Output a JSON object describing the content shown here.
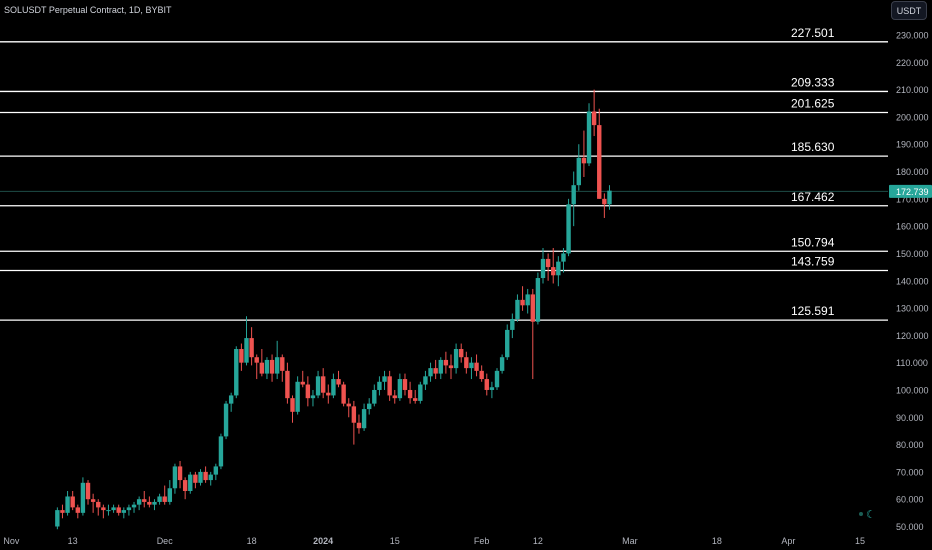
{
  "header": {
    "symbol": "SOLUSDT Perpetual Contract",
    "interval": "1D",
    "exchange": "BYBIT"
  },
  "currency_button": "USDT",
  "colors": {
    "background": "#000000",
    "up": "#26a69a",
    "down": "#ef5350",
    "axis_text": "#b2b5be",
    "level_line": "#ffffff",
    "price_tag": "#26a69a"
  },
  "chart_data": {
    "type": "candlestick",
    "y_axis": {
      "range": [
        50,
        230
      ],
      "ticks": [
        "50.000",
        "60.000",
        "70.000",
        "80.000",
        "90.000",
        "100.000",
        "110.000",
        "120.000",
        "130.000",
        "140.000",
        "150.000",
        "160.000",
        "170.000",
        "180.000",
        "190.000",
        "200.000",
        "210.000",
        "220.000",
        "230.000"
      ]
    },
    "x_axis": {
      "range": [
        "2023-10-29",
        "2024-04-18"
      ],
      "ticks": [
        {
          "date": "2023-11-01",
          "label": "Nov"
        },
        {
          "date": "2023-11-13",
          "label": "13"
        },
        {
          "date": "2023-12-01",
          "label": "Dec"
        },
        {
          "date": "2023-12-18",
          "label": "18"
        },
        {
          "date": "2024-01-01",
          "label": "2024",
          "bold": true
        },
        {
          "date": "2024-01-15",
          "label": "15"
        },
        {
          "date": "2024-02-01",
          "label": "Feb"
        },
        {
          "date": "2024-02-12",
          "label": "12"
        },
        {
          "date": "2024-03-01",
          "label": "Mar"
        },
        {
          "date": "2024-03-18",
          "label": "18"
        },
        {
          "date": "2024-04-01",
          "label": "Apr"
        },
        {
          "date": "2024-04-15",
          "label": "15"
        }
      ]
    },
    "levels": [
      {
        "value": 227.501,
        "label": "227.501"
      },
      {
        "value": 209.333,
        "label": "209.333"
      },
      {
        "value": 201.625,
        "label": "201.625"
      },
      {
        "value": 185.63,
        "label": "185.630"
      },
      {
        "value": 167.462,
        "label": "167.462"
      },
      {
        "value": 150.794,
        "label": "150.794"
      },
      {
        "value": 143.759,
        "label": "143.759"
      },
      {
        "value": 125.591,
        "label": "125.591"
      }
    ],
    "last_price": {
      "value": 172.739,
      "label": "172.739"
    },
    "start_date": "2023-11-10",
    "candles": [
      [
        50,
        57,
        49,
        56
      ],
      [
        56,
        58,
        53,
        55
      ],
      [
        55,
        63,
        54,
        61
      ],
      [
        61,
        63,
        56,
        57
      ],
      [
        57,
        58,
        53,
        55
      ],
      [
        55,
        68,
        54,
        66
      ],
      [
        66,
        67,
        58,
        60
      ],
      [
        60,
        62,
        55,
        59
      ],
      [
        59,
        60,
        54,
        57
      ],
      [
        57,
        58,
        53,
        56
      ],
      [
        56,
        58,
        54,
        56
      ],
      [
        56,
        58,
        55,
        57
      ],
      [
        57,
        58,
        54,
        55
      ],
      [
        55,
        57,
        53,
        56
      ],
      [
        56,
        58,
        54,
        57
      ],
      [
        57,
        59,
        55,
        58
      ],
      [
        58,
        61,
        56,
        60
      ],
      [
        60,
        63,
        57,
        59
      ],
      [
        59,
        61,
        57,
        58
      ],
      [
        58,
        60,
        56,
        59
      ],
      [
        59,
        62,
        58,
        61
      ],
      [
        61,
        65,
        58,
        59
      ],
      [
        59,
        67,
        58,
        64
      ],
      [
        64,
        73,
        62,
        72
      ],
      [
        72,
        74,
        64,
        67
      ],
      [
        67,
        68,
        60,
        63
      ],
      [
        63,
        70,
        62,
        69
      ],
      [
        69,
        70,
        64,
        66
      ],
      [
        66,
        71,
        65,
        70
      ],
      [
        70,
        72,
        66,
        67
      ],
      [
        67,
        70,
        65,
        69
      ],
      [
        69,
        73,
        67,
        72
      ],
      [
        72,
        84,
        71,
        83
      ],
      [
        83,
        96,
        82,
        95
      ],
      [
        95,
        99,
        92,
        98
      ],
      [
        98,
        116,
        97,
        115
      ],
      [
        115,
        117,
        107,
        110
      ],
      [
        110,
        127,
        109,
        119
      ],
      [
        119,
        123,
        109,
        112
      ],
      [
        112,
        113,
        104,
        110
      ],
      [
        110,
        115,
        105,
        106
      ],
      [
        106,
        112,
        104,
        111
      ],
      [
        111,
        113,
        103,
        106
      ],
      [
        106,
        118,
        104,
        112
      ],
      [
        112,
        113,
        103,
        107
      ],
      [
        107,
        110,
        95,
        97
      ],
      [
        97,
        98,
        88,
        92
      ],
      [
        92,
        105,
        91,
        103
      ],
      [
        103,
        107,
        101,
        102
      ],
      [
        102,
        105,
        94,
        97
      ],
      [
        97,
        100,
        94,
        98
      ],
      [
        98,
        107,
        97,
        105
      ],
      [
        105,
        108,
        97,
        99
      ],
      [
        99,
        102,
        95,
        98
      ],
      [
        98,
        106,
        97,
        104
      ],
      [
        104,
        107,
        101,
        102
      ],
      [
        102,
        103,
        94,
        95
      ],
      [
        95,
        97,
        90,
        94
      ],
      [
        94,
        96,
        80,
        88
      ],
      [
        88,
        91,
        84,
        86
      ],
      [
        86,
        95,
        85,
        93
      ],
      [
        93,
        97,
        91,
        95
      ],
      [
        95,
        102,
        94,
        100
      ],
      [
        100,
        105,
        98,
        103
      ],
      [
        103,
        107,
        100,
        105
      ],
      [
        105,
        107,
        96,
        98
      ],
      [
        98,
        100,
        95,
        97
      ],
      [
        97,
        106,
        96,
        104
      ],
      [
        104,
        106,
        98,
        100
      ],
      [
        100,
        103,
        95,
        97
      ],
      [
        97,
        100,
        95,
        96
      ],
      [
        96,
        103,
        95,
        102
      ],
      [
        102,
        107,
        100,
        105
      ],
      [
        105,
        110,
        103,
        108
      ],
      [
        108,
        111,
        104,
        106
      ],
      [
        106,
        112,
        104,
        111
      ],
      [
        111,
        114,
        106,
        109
      ],
      [
        109,
        113,
        104,
        108
      ],
      [
        108,
        117,
        106,
        115
      ],
      [
        115,
        117,
        110,
        112
      ],
      [
        112,
        114,
        106,
        108
      ],
      [
        108,
        112,
        104,
        110
      ],
      [
        110,
        113,
        105,
        107
      ],
      [
        107,
        109,
        103,
        104
      ],
      [
        104,
        106,
        98,
        100
      ],
      [
        100,
        103,
        97,
        101
      ],
      [
        101,
        108,
        100,
        107
      ],
      [
        107,
        113,
        106,
        112
      ],
      [
        112,
        124,
        111,
        122
      ],
      [
        122,
        128,
        119,
        126
      ],
      [
        126,
        135,
        125,
        133
      ],
      [
        133,
        138,
        129,
        131
      ],
      [
        131,
        137,
        128,
        135
      ],
      [
        135,
        137,
        104,
        125
      ],
      [
        125,
        143,
        124,
        141
      ],
      [
        141,
        152,
        139,
        148
      ],
      [
        148,
        150,
        140,
        145
      ],
      [
        145,
        152,
        139,
        142
      ],
      [
        142,
        149,
        138,
        147
      ],
      [
        147,
        152,
        143,
        150
      ],
      [
        150,
        170,
        149,
        168
      ],
      [
        168,
        180,
        160,
        175
      ],
      [
        175,
        190,
        173,
        185
      ],
      [
        185,
        195,
        178,
        183
      ],
      [
        183,
        205,
        182,
        202
      ],
      [
        202,
        210,
        193,
        197
      ],
      [
        197,
        203,
        170,
        170
      ],
      [
        170,
        172,
        163,
        168
      ],
      [
        168,
        175,
        166,
        173
      ]
    ]
  }
}
